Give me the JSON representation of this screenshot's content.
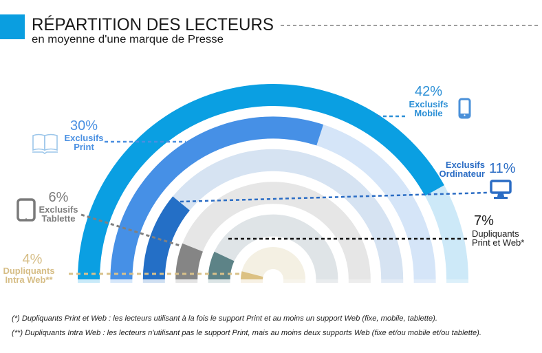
{
  "header": {
    "title": "RÉPARTITION DES LECTEURS",
    "subtitle": "en moyenne d'une marque de Presse",
    "accent_color": "#0a9ee0"
  },
  "chart_data": {
    "type": "bar",
    "layout": "radial",
    "title": "RÉPARTITION DES LECTEURS",
    "subtitle": "en moyenne d'une marque de Presse",
    "unit": "%",
    "value_range": [
      0,
      50
    ],
    "grid": false,
    "series": [
      {
        "key": "exclusifs-mobile",
        "name": "Exclusifs Mobile",
        "line1": "Exclusifs",
        "line2": "Mobile",
        "value": 42,
        "label": "42%",
        "color": "#0a9fe2",
        "track_color": "#cde9f8",
        "text_color": "#2b8fd6",
        "icon": "smartphone-icon"
      },
      {
        "key": "exclusifs-print",
        "name": "Exclusifs Print",
        "line1": "Exclusifs",
        "line2": "Print",
        "value": 30,
        "label": "30%",
        "color": "#4690e6",
        "track_color": "#d5e5f8",
        "text_color": "#4a90e2",
        "icon": "book-icon"
      },
      {
        "key": "exclusifs-ordinateur",
        "name": "Exclusifs Ordinateur",
        "line1": "Exclusifs",
        "line2": "Ordinateur",
        "value": 11,
        "label": "11%",
        "color": "#246fc6",
        "track_color": "#d6e3f2",
        "text_color": "#2a6cc4",
        "icon": "monitor-icon"
      },
      {
        "key": "exclusifs-tablette",
        "name": "Exclusifs Tablette",
        "line1": "Exclusifs",
        "line2": "Tablette",
        "value": 6,
        "label": "6%",
        "color": "#858585",
        "track_color": "#e6e6e6",
        "text_color": "#7d7d7d",
        "icon": "tablet-icon"
      },
      {
        "key": "dupliquants-print-et-web",
        "name": "Dupliquants Print et Web*",
        "line1": "Dupliquants",
        "line2": "Print et Web*",
        "value": 7,
        "label": "7%",
        "color": "#5d8387",
        "track_color": "#dfe4e7",
        "text_color": "#1a1a1a",
        "icon": ""
      },
      {
        "key": "dupliquants-intra-web",
        "name": "Dupliquants Intra Web**",
        "line1": "Dupliquants",
        "line2": "Intra Web**",
        "value": 4,
        "label": "4%",
        "color": "#dcc183",
        "track_color": "#f4f0e3",
        "text_color": "#d6bd85",
        "icon": ""
      }
    ]
  },
  "footnotes": [
    "(*) Dupliquants Print et Web : les lecteurs utilisant à la fois le support Print et au moins un support Web (fixe, mobile, tablette).",
    "(**) Dupliquants Intra Web : les lecteurs n'utilisant pas le support Print, mais au moins deux supports Web (fixe et/ou mobile et/ou tablette)."
  ]
}
